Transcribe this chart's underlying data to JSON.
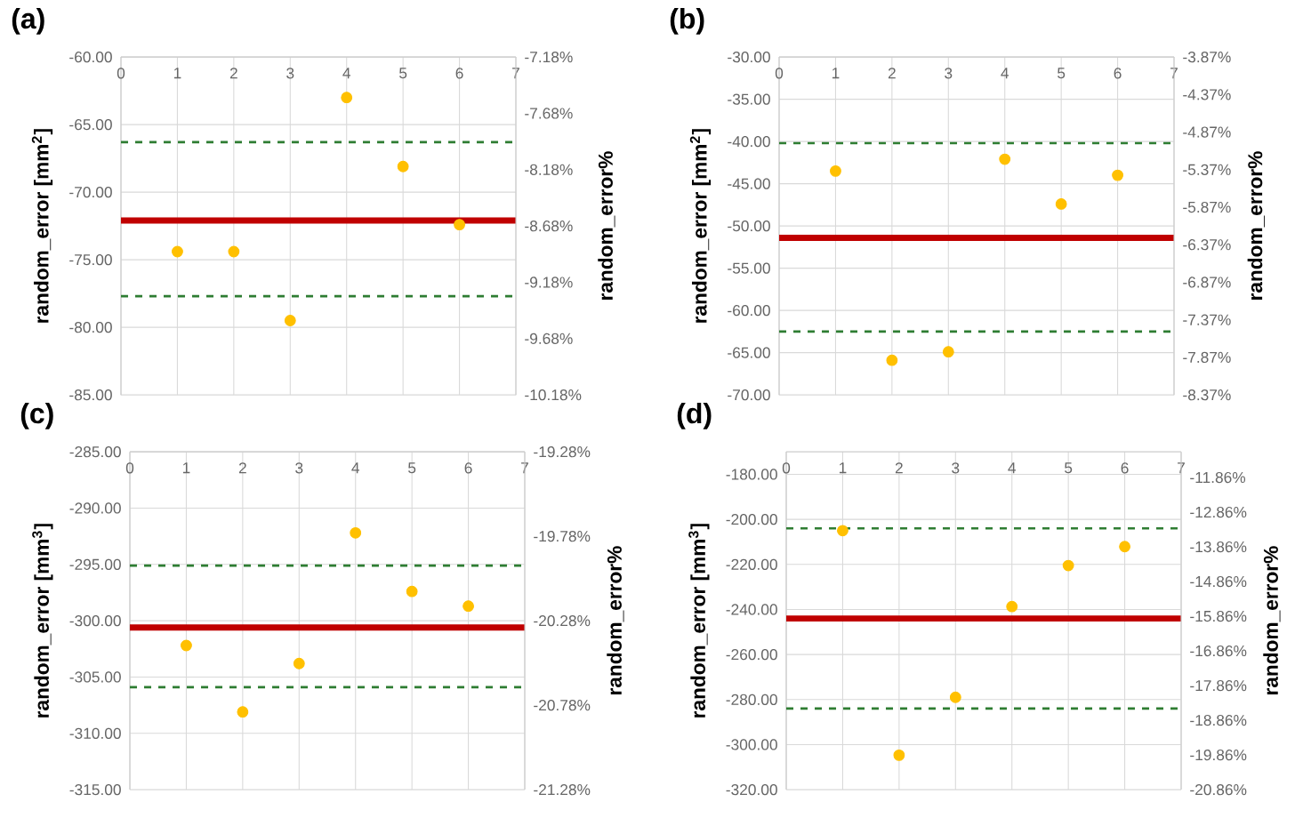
{
  "chart_data": [
    {
      "type": "scatter",
      "title": "(a)",
      "ylabel": "random_error [mm$^{2}$]",
      "y2label": "random_error%",
      "x": [
        1,
        2,
        3,
        4,
        5,
        6
      ],
      "xlim": [
        0,
        7
      ],
      "xticks": [
        0,
        1,
        2,
        3,
        4,
        5,
        6,
        7
      ],
      "ylim": [
        -85,
        -60
      ],
      "yticks": [
        {
          "value": -85,
          "label": "-85.00"
        },
        {
          "value": -80,
          "label": "-80.00"
        },
        {
          "value": -75,
          "label": "-75.00"
        },
        {
          "value": -70,
          "label": "-70.00"
        },
        {
          "value": -65,
          "label": "-65.00"
        },
        {
          "value": -60,
          "label": "-60.00"
        }
      ],
      "y2lim": [
        -10.18,
        -7.18
      ],
      "y2ticks": [
        {
          "value": -10.18,
          "label": "-10.18%"
        },
        {
          "value": -9.68,
          "label": "-9.68%"
        },
        {
          "value": -9.18,
          "label": "-9.18%"
        },
        {
          "value": -8.68,
          "label": "-8.68%"
        },
        {
          "value": -8.18,
          "label": "-8.18%"
        },
        {
          "value": -7.68,
          "label": "-7.68%"
        },
        {
          "value": -7.18,
          "label": "-7.18%"
        }
      ],
      "series": [
        {
          "color": "#ffc000",
          "values": [
            -74.4,
            -74.4,
            -79.5,
            -63.0,
            -68.1,
            -72.4
          ]
        }
      ],
      "ref_lines": [
        {
          "axis": "y",
          "value": -72.1,
          "color": "#c00000",
          "line_style": "solid"
        },
        {
          "axis": "y",
          "value": -66.3,
          "color": "#2e7d32",
          "line_style": "dashed"
        },
        {
          "axis": "y",
          "value": -77.7,
          "color": "#2e7d32",
          "line_style": "dashed"
        }
      ],
      "grid": true,
      "marker": "circle"
    },
    {
      "type": "scatter",
      "title": "(b)",
      "ylabel": "random_error [mm$^{2}$]",
      "y2label": "random_error%",
      "x": [
        1,
        2,
        3,
        4,
        5,
        6
      ],
      "xlim": [
        0,
        7
      ],
      "xticks": [
        0,
        1,
        2,
        3,
        4,
        5,
        6,
        7
      ],
      "ylim": [
        -70,
        -30
      ],
      "yticks": [
        {
          "value": -70,
          "label": "-70.00"
        },
        {
          "value": -65,
          "label": "-65.00"
        },
        {
          "value": -60,
          "label": "-60.00"
        },
        {
          "value": -55,
          "label": "-55.00"
        },
        {
          "value": -50,
          "label": "-50.00"
        },
        {
          "value": -45,
          "label": "-45.00"
        },
        {
          "value": -40,
          "label": "-40.00"
        },
        {
          "value": -35,
          "label": "-35.00"
        },
        {
          "value": -30,
          "label": "-30.00"
        }
      ],
      "y2lim": [
        -8.37,
        -3.87
      ],
      "y2ticks": [
        {
          "value": -8.37,
          "label": "-8.37%"
        },
        {
          "value": -7.87,
          "label": "-7.87%"
        },
        {
          "value": -7.37,
          "label": "-7.37%"
        },
        {
          "value": -6.87,
          "label": "-6.87%"
        },
        {
          "value": -6.37,
          "label": "-6.37%"
        },
        {
          "value": -5.87,
          "label": "-5.87%"
        },
        {
          "value": -5.37,
          "label": "-5.37%"
        },
        {
          "value": -4.87,
          "label": "-4.87%"
        },
        {
          "value": -4.37,
          "label": "-4.37%"
        },
        {
          "value": -3.87,
          "label": "-3.87%"
        }
      ],
      "series": [
        {
          "color": "#ffc000",
          "values": [
            -43.5,
            -65.9,
            -64.9,
            -42.1,
            -47.4,
            -44.0
          ]
        }
      ],
      "ref_lines": [
        {
          "axis": "y",
          "value": -51.4,
          "color": "#c00000",
          "line_style": "solid"
        },
        {
          "axis": "y",
          "value": -40.2,
          "color": "#2e7d32",
          "line_style": "dashed"
        },
        {
          "axis": "y",
          "value": -62.5,
          "color": "#2e7d32",
          "line_style": "dashed"
        }
      ],
      "grid": true,
      "marker": "circle"
    },
    {
      "type": "scatter",
      "title": "(c)",
      "ylabel": "random_error [mm$^{3}$]",
      "y2label": "random_error%",
      "x": [
        1,
        2,
        3,
        4,
        5,
        6
      ],
      "xlim": [
        0,
        7
      ],
      "xticks": [
        0,
        1,
        2,
        3,
        4,
        5,
        6,
        7
      ],
      "ylim": [
        -315,
        -285
      ],
      "yticks": [
        {
          "value": -315,
          "label": "-315.00"
        },
        {
          "value": -310,
          "label": "-310.00"
        },
        {
          "value": -305,
          "label": "-305.00"
        },
        {
          "value": -300,
          "label": "-300.00"
        },
        {
          "value": -295,
          "label": "-295.00"
        },
        {
          "value": -290,
          "label": "-290.00"
        },
        {
          "value": -285,
          "label": "-285.00"
        }
      ],
      "y2lim": [
        -21.28,
        -19.28
      ],
      "y2ticks": [
        {
          "value": -21.28,
          "label": "-21.28%"
        },
        {
          "value": -20.78,
          "label": "-20.78%"
        },
        {
          "value": -20.28,
          "label": "-20.28%"
        },
        {
          "value": -19.78,
          "label": "-19.78%"
        },
        {
          "value": -19.28,
          "label": "-19.28%"
        }
      ],
      "series": [
        {
          "color": "#ffc000",
          "values": [
            -302.2,
            -308.1,
            -303.8,
            -292.2,
            -297.4,
            -298.7
          ]
        }
      ],
      "ref_lines": [
        {
          "axis": "y",
          "value": -300.6,
          "color": "#c00000",
          "line_style": "solid"
        },
        {
          "axis": "y",
          "value": -295.1,
          "color": "#2e7d32",
          "line_style": "dashed"
        },
        {
          "axis": "y",
          "value": -305.9,
          "color": "#2e7d32",
          "line_style": "dashed"
        }
      ],
      "grid": true,
      "marker": "circle"
    },
    {
      "type": "scatter",
      "title": "(d)",
      "ylabel": "random_error [mm$^{3}$]",
      "y2label": "random_error%",
      "x": [
        1,
        2,
        3,
        4,
        5,
        6
      ],
      "xlim": [
        0,
        7
      ],
      "xticks": [
        0,
        1,
        2,
        3,
        4,
        5,
        6,
        7
      ],
      "ylim": [
        -320,
        -170
      ],
      "yticks": [
        {
          "value": -320,
          "label": "-320.00"
        },
        {
          "value": -300,
          "label": "-300.00"
        },
        {
          "value": -280,
          "label": "-280.00"
        },
        {
          "value": -260,
          "label": "-260.00"
        },
        {
          "value": -240,
          "label": "-240.00"
        },
        {
          "value": -220,
          "label": "-220.00"
        },
        {
          "value": -200,
          "label": "-200.00"
        },
        {
          "value": -180,
          "label": "-180.00"
        }
      ],
      "y2lim": [
        -20.86,
        -11.12
      ],
      "y2ticks": [
        {
          "value": -20.86,
          "label": "-20.86%"
        },
        {
          "value": -19.86,
          "label": "-19.86%"
        },
        {
          "value": -18.86,
          "label": "-18.86%"
        },
        {
          "value": -17.86,
          "label": "-17.86%"
        },
        {
          "value": -16.86,
          "label": "-16.86%"
        },
        {
          "value": -15.86,
          "label": "-15.86%"
        },
        {
          "value": -14.86,
          "label": "-14.86%"
        },
        {
          "value": -13.86,
          "label": "-13.86%"
        },
        {
          "value": -12.86,
          "label": "-12.86%"
        },
        {
          "value": -11.86,
          "label": "-11.86%"
        }
      ],
      "series": [
        {
          "color": "#ffc000",
          "values": [
            -205.0,
            -304.7,
            -279.0,
            -238.7,
            -220.5,
            -212.1
          ]
        }
      ],
      "ref_lines": [
        {
          "axis": "y",
          "value": -244.0,
          "color": "#c00000",
          "line_style": "solid"
        },
        {
          "axis": "y",
          "value": -204.0,
          "color": "#2e7d32",
          "line_style": "dashed"
        },
        {
          "axis": "y",
          "value": -284.0,
          "color": "#2e7d32",
          "line_style": "dashed"
        }
      ],
      "grid": true,
      "marker": "circle"
    }
  ]
}
